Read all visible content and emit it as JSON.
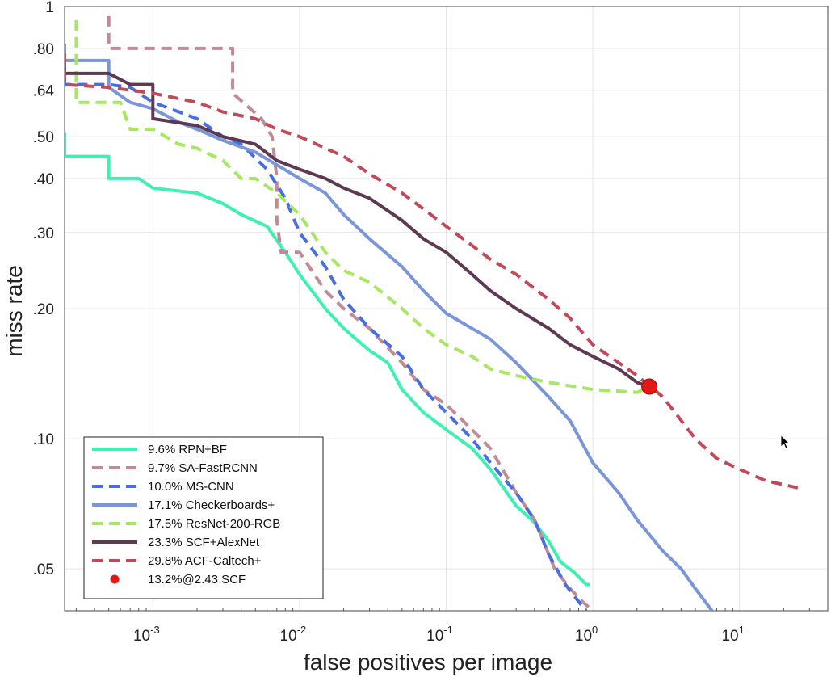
{
  "chart_data": {
    "type": "line",
    "title": "",
    "xlabel": "false positives per image",
    "ylabel": "miss rate",
    "x_scale": "log",
    "y_scale": "log",
    "xlim": [
      0.00025,
      40
    ],
    "ylim": [
      0.04,
      1
    ],
    "grid": true,
    "legend_position": "bottom-left",
    "x_ticks": [
      {
        "value": 0.001,
        "base": "10",
        "exp": "-3"
      },
      {
        "value": 0.01,
        "base": "10",
        "exp": "-2"
      },
      {
        "value": 0.1,
        "base": "10",
        "exp": "-1"
      },
      {
        "value": 1,
        "base": "10",
        "exp": "0"
      },
      {
        "value": 10,
        "base": "10",
        "exp": "1"
      }
    ],
    "y_ticks": [
      {
        "value": 1,
        "label": "1"
      },
      {
        "value": 0.8,
        "label": ".80"
      },
      {
        "value": 0.64,
        "label": ".64"
      },
      {
        "value": 0.5,
        "label": ".50"
      },
      {
        "value": 0.4,
        "label": ".40"
      },
      {
        "value": 0.3,
        "label": ".30"
      },
      {
        "value": 0.2,
        "label": ".20"
      },
      {
        "value": 0.1,
        "label": ".10"
      },
      {
        "value": 0.05,
        "label": ".05"
      }
    ],
    "series": [
      {
        "name": "9.6% RPN+BF",
        "color": "#3ef0b4",
        "dash": "solid",
        "points": [
          [
            0.00025,
            0.51
          ],
          [
            0.00025,
            0.45
          ],
          [
            0.0005,
            0.45
          ],
          [
            0.0005,
            0.4
          ],
          [
            0.0008,
            0.4
          ],
          [
            0.001,
            0.38
          ],
          [
            0.002,
            0.37
          ],
          [
            0.003,
            0.35
          ],
          [
            0.004,
            0.33
          ],
          [
            0.006,
            0.31
          ],
          [
            0.008,
            0.27
          ],
          [
            0.01,
            0.24
          ],
          [
            0.015,
            0.2
          ],
          [
            0.02,
            0.18
          ],
          [
            0.03,
            0.16
          ],
          [
            0.04,
            0.15
          ],
          [
            0.05,
            0.13
          ],
          [
            0.07,
            0.115
          ],
          [
            0.1,
            0.105
          ],
          [
            0.15,
            0.095
          ],
          [
            0.2,
            0.085
          ],
          [
            0.3,
            0.07
          ],
          [
            0.4,
            0.064
          ],
          [
            0.5,
            0.058
          ],
          [
            0.6,
            0.052
          ],
          [
            0.75,
            0.049
          ],
          [
            0.9,
            0.046
          ],
          [
            0.95,
            0.046
          ]
        ]
      },
      {
        "name": "9.7% SA-FastRCNN",
        "color": "#c08a96",
        "dash": "dashed",
        "points": [
          [
            0.0005,
            0.95
          ],
          [
            0.0005,
            0.8
          ],
          [
            0.0035,
            0.8
          ],
          [
            0.0035,
            0.63
          ],
          [
            0.0055,
            0.55
          ],
          [
            0.0065,
            0.5
          ],
          [
            0.007,
            0.4
          ],
          [
            0.007,
            0.32
          ],
          [
            0.0075,
            0.27
          ],
          [
            0.01,
            0.27
          ],
          [
            0.015,
            0.22
          ],
          [
            0.02,
            0.2
          ],
          [
            0.03,
            0.18
          ],
          [
            0.05,
            0.15
          ],
          [
            0.07,
            0.13
          ],
          [
            0.1,
            0.12
          ],
          [
            0.15,
            0.105
          ],
          [
            0.2,
            0.095
          ],
          [
            0.3,
            0.075
          ],
          [
            0.4,
            0.065
          ],
          [
            0.55,
            0.05
          ],
          [
            0.7,
            0.045
          ],
          [
            0.85,
            0.042
          ],
          [
            1.0,
            0.04
          ]
        ]
      },
      {
        "name": "10.0% MS-CNN",
        "color": "#4a6ee0",
        "dash": "dashed",
        "points": [
          [
            0.00025,
            0.74
          ],
          [
            0.00025,
            0.66
          ],
          [
            0.0005,
            0.66
          ],
          [
            0.0007,
            0.65
          ],
          [
            0.001,
            0.6
          ],
          [
            0.002,
            0.55
          ],
          [
            0.003,
            0.5
          ],
          [
            0.004,
            0.48
          ],
          [
            0.006,
            0.42
          ],
          [
            0.008,
            0.36
          ],
          [
            0.01,
            0.3
          ],
          [
            0.015,
            0.25
          ],
          [
            0.02,
            0.21
          ],
          [
            0.03,
            0.18
          ],
          [
            0.05,
            0.155
          ],
          [
            0.07,
            0.13
          ],
          [
            0.1,
            0.115
          ],
          [
            0.15,
            0.1
          ],
          [
            0.2,
            0.088
          ],
          [
            0.3,
            0.075
          ],
          [
            0.4,
            0.065
          ],
          [
            0.5,
            0.054
          ],
          [
            0.65,
            0.046
          ],
          [
            0.8,
            0.042
          ],
          [
            0.9,
            0.04
          ]
        ]
      },
      {
        "name": "17.1% Checkerboards+",
        "color": "#7b96d8",
        "dash": "solid",
        "points": [
          [
            0.00025,
            0.82
          ],
          [
            0.00025,
            0.75
          ],
          [
            0.0005,
            0.75
          ],
          [
            0.0005,
            0.65
          ],
          [
            0.0007,
            0.6
          ],
          [
            0.001,
            0.58
          ],
          [
            0.0015,
            0.54
          ],
          [
            0.002,
            0.52
          ],
          [
            0.003,
            0.49
          ],
          [
            0.005,
            0.46
          ],
          [
            0.007,
            0.43
          ],
          [
            0.01,
            0.4
          ],
          [
            0.015,
            0.37
          ],
          [
            0.02,
            0.33
          ],
          [
            0.03,
            0.29
          ],
          [
            0.05,
            0.25
          ],
          [
            0.07,
            0.22
          ],
          [
            0.1,
            0.195
          ],
          [
            0.2,
            0.17
          ],
          [
            0.3,
            0.15
          ],
          [
            0.5,
            0.125
          ],
          [
            0.7,
            0.11
          ],
          [
            1.0,
            0.088
          ],
          [
            1.5,
            0.075
          ],
          [
            2.0,
            0.065
          ],
          [
            3.0,
            0.055
          ],
          [
            4.0,
            0.05
          ],
          [
            5.0,
            0.045
          ],
          [
            6.5,
            0.04
          ]
        ]
      },
      {
        "name": "17.5% ResNet-200-RGB",
        "color": "#a6e860",
        "dash": "dashed",
        "points": [
          [
            0.0003,
            0.93
          ],
          [
            0.0003,
            0.6
          ],
          [
            0.0006,
            0.6
          ],
          [
            0.0007,
            0.52
          ],
          [
            0.001,
            0.52
          ],
          [
            0.0015,
            0.48
          ],
          [
            0.002,
            0.47
          ],
          [
            0.003,
            0.44
          ],
          [
            0.004,
            0.4
          ],
          [
            0.005,
            0.4
          ],
          [
            0.007,
            0.37
          ],
          [
            0.01,
            0.33
          ],
          [
            0.015,
            0.27
          ],
          [
            0.02,
            0.245
          ],
          [
            0.03,
            0.23
          ],
          [
            0.05,
            0.2
          ],
          [
            0.07,
            0.18
          ],
          [
            0.1,
            0.165
          ],
          [
            0.15,
            0.155
          ],
          [
            0.2,
            0.145
          ],
          [
            0.3,
            0.14
          ],
          [
            0.5,
            0.135
          ],
          [
            1.0,
            0.13
          ],
          [
            2.0,
            0.128
          ],
          [
            2.43,
            0.132
          ]
        ]
      },
      {
        "name": "23.3% SCF+AlexNet",
        "color": "#5e3a52",
        "dash": "solid",
        "points": [
          [
            0.00025,
            0.72
          ],
          [
            0.00025,
            0.7
          ],
          [
            0.0005,
            0.7
          ],
          [
            0.0007,
            0.66
          ],
          [
            0.001,
            0.66
          ],
          [
            0.001,
            0.55
          ],
          [
            0.002,
            0.53
          ],
          [
            0.003,
            0.5
          ],
          [
            0.005,
            0.48
          ],
          [
            0.007,
            0.44
          ],
          [
            0.01,
            0.42
          ],
          [
            0.015,
            0.4
          ],
          [
            0.02,
            0.38
          ],
          [
            0.03,
            0.36
          ],
          [
            0.05,
            0.32
          ],
          [
            0.07,
            0.29
          ],
          [
            0.1,
            0.27
          ],
          [
            0.15,
            0.24
          ],
          [
            0.2,
            0.22
          ],
          [
            0.3,
            0.2
          ],
          [
            0.5,
            0.18
          ],
          [
            0.7,
            0.165
          ],
          [
            1.0,
            0.155
          ],
          [
            1.5,
            0.145
          ],
          [
            2.0,
            0.135
          ],
          [
            2.43,
            0.132
          ]
        ]
      },
      {
        "name": "29.8% ACF-Caltech+",
        "color": "#c04a5a",
        "dash": "dashed",
        "points": [
          [
            0.00025,
            0.78
          ],
          [
            0.00025,
            0.66
          ],
          [
            0.0005,
            0.65
          ],
          [
            0.001,
            0.63
          ],
          [
            0.002,
            0.6
          ],
          [
            0.003,
            0.57
          ],
          [
            0.005,
            0.55
          ],
          [
            0.007,
            0.52
          ],
          [
            0.01,
            0.5
          ],
          [
            0.015,
            0.47
          ],
          [
            0.02,
            0.45
          ],
          [
            0.03,
            0.41
          ],
          [
            0.05,
            0.37
          ],
          [
            0.07,
            0.34
          ],
          [
            0.1,
            0.31
          ],
          [
            0.15,
            0.28
          ],
          [
            0.2,
            0.26
          ],
          [
            0.3,
            0.24
          ],
          [
            0.5,
            0.21
          ],
          [
            0.7,
            0.19
          ],
          [
            1.0,
            0.165
          ],
          [
            1.5,
            0.15
          ],
          [
            2.0,
            0.14
          ],
          [
            3.0,
            0.125
          ],
          [
            5.0,
            0.1
          ],
          [
            7.0,
            0.09
          ],
          [
            10.0,
            0.085
          ],
          [
            15.0,
            0.08
          ],
          [
            25.0,
            0.077
          ]
        ]
      },
      {
        "name": "13.2%@2.43 SCF",
        "color": "#e01818",
        "marker": "circle",
        "points": [
          [
            2.43,
            0.132
          ]
        ]
      }
    ]
  }
}
